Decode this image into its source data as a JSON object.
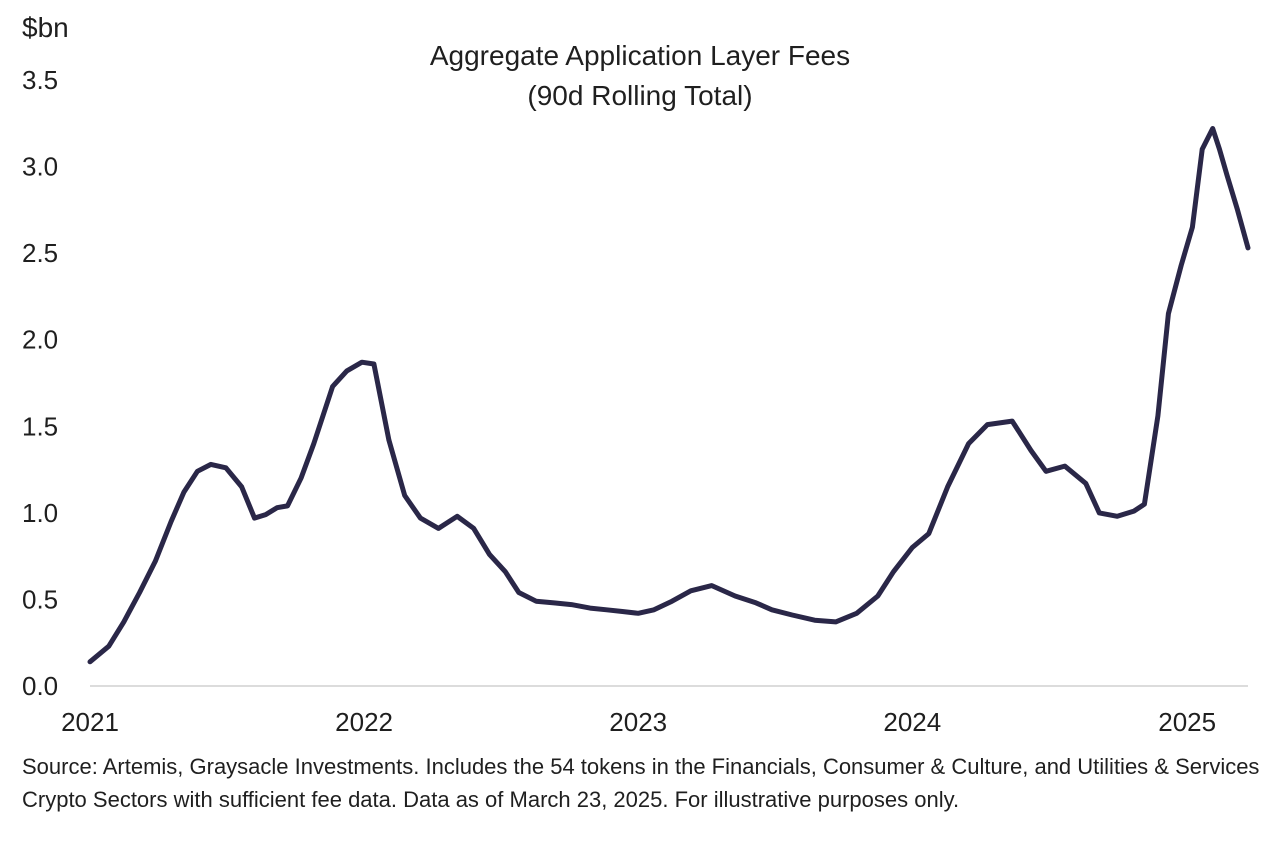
{
  "chart_data": {
    "type": "line",
    "title": "Aggregate Application Layer Fees",
    "subtitle": "(90d Rolling Total)",
    "ylabel": "$bn",
    "xlabel": "",
    "ylim": [
      0,
      3.5
    ],
    "xlim": [
      "2021-01-01",
      "2025-03-23"
    ],
    "y_ticks": [
      "0.0",
      "0.5",
      "1.0",
      "1.5",
      "2.0",
      "2.5",
      "3.0",
      "3.5"
    ],
    "x_ticks": [
      "2021",
      "2022",
      "2023",
      "2024",
      "2025"
    ],
    "grid": false,
    "legend": "none",
    "line_color": "#2a2748",
    "series": [
      {
        "x": [
          "2021-01-01",
          "2021-01-26",
          "2021-02-15",
          "2021-03-08",
          "2021-03-29",
          "2021-04-19",
          "2021-05-06",
          "2021-05-24",
          "2021-06-11",
          "2021-07-01",
          "2021-07-22",
          "2021-08-08",
          "2021-08-23",
          "2021-09-07",
          "2021-09-21",
          "2021-10-09",
          "2021-10-26",
          "2021-11-20",
          "2021-12-09",
          "2021-12-29",
          "2022-01-14",
          "2022-02-03",
          "2022-02-24",
          "2022-03-17",
          "2022-04-10",
          "2022-05-05",
          "2022-05-27",
          "2022-06-17",
          "2022-07-08",
          "2022-07-26",
          "2022-08-18",
          "2022-09-11",
          "2022-10-04",
          "2022-10-29",
          "2022-11-20",
          "2022-12-11",
          "2023-01-01",
          "2023-01-22",
          "2023-02-15",
          "2023-03-12",
          "2023-04-09",
          "2023-05-10",
          "2023-06-07",
          "2023-06-28",
          "2023-07-25",
          "2023-08-24",
          "2023-09-21",
          "2023-10-19",
          "2023-11-16",
          "2023-12-07",
          "2024-01-01",
          "2024-01-23",
          "2024-02-17",
          "2024-03-16",
          "2024-04-10",
          "2024-05-13",
          "2024-06-07",
          "2024-06-27",
          "2024-07-22",
          "2024-08-19",
          "2024-09-06",
          "2024-09-30",
          "2024-10-22",
          "2024-11-05",
          "2024-11-23",
          "2024-12-07",
          "2024-12-24",
          "2025-01-08",
          "2025-01-21",
          "2025-02-04",
          "2025-02-13",
          "2025-02-23",
          "2025-03-09",
          "2025-03-23"
        ],
        "values": [
          0.14,
          0.23,
          0.37,
          0.54,
          0.72,
          0.95,
          1.12,
          1.24,
          1.28,
          1.26,
          1.15,
          0.97,
          0.99,
          1.03,
          1.04,
          1.2,
          1.4,
          1.73,
          1.82,
          1.87,
          1.86,
          1.42,
          1.1,
          0.97,
          0.91,
          0.98,
          0.91,
          0.76,
          0.66,
          0.54,
          0.49,
          0.48,
          0.47,
          0.45,
          0.44,
          0.43,
          0.42,
          0.44,
          0.49,
          0.55,
          0.58,
          0.52,
          0.48,
          0.44,
          0.41,
          0.38,
          0.37,
          0.42,
          0.52,
          0.66,
          0.8,
          0.88,
          1.15,
          1.4,
          1.51,
          1.53,
          1.36,
          1.24,
          1.27,
          1.17,
          1.0,
          0.98,
          1.01,
          1.05,
          1.56,
          2.15,
          2.43,
          2.65,
          3.1,
          3.22,
          3.1,
          2.95,
          2.75,
          2.53
        ]
      }
    ]
  },
  "footnote": "Source: Artemis, Graysacle Investments. Includes the 54 tokens in the Financials, Consumer & Culture, and Utilities & Services Crypto Sectors with sufficient fee data. Data as of March 23, 2025. For illustrative purposes only."
}
